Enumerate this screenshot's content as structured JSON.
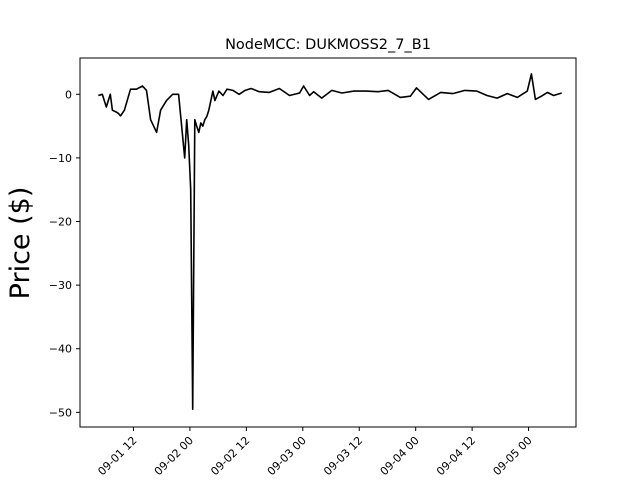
{
  "chart_data": {
    "type": "line",
    "title": "NodeMCC: DUKMOSS2_7_B1",
    "xlabel": "",
    "ylabel": "Price ($)",
    "ylim": [
      -52.3,
      5.7
    ],
    "xlim": [
      "2020-09-01 00:38",
      "2020-09-05 10:05"
    ],
    "grid": false,
    "yticks": [
      0,
      -10,
      -20,
      -30,
      -40,
      -50
    ],
    "ytick_labels": [
      "0",
      "−10",
      "−20",
      "−30",
      "−40",
      "−50"
    ],
    "xticks": [
      "2020-09-01 12:00",
      "2020-09-02 00:00",
      "2020-09-02 12:00",
      "2020-09-03 00:00",
      "2020-09-03 12:00",
      "2020-09-04 00:00",
      "2020-09-04 12:00",
      "2020-09-05 00:00"
    ],
    "xtick_labels": [
      "09-01 12",
      "09-02 00",
      "09-02 12",
      "09-03 00",
      "09-03 12",
      "09-04 00",
      "09-04 12",
      "09-05 00"
    ],
    "series": [
      {
        "color": "#000000",
        "x": [
          "2020-09-01 04:31",
          "2020-09-01 05:22",
          "2020-09-01 06:14",
          "2020-09-01 07:05",
          "2020-09-01 07:31",
          "2020-09-01 08:22",
          "2020-09-01 08:48",
          "2020-09-01 09:14",
          "2020-09-01 10:05",
          "2020-09-01 11:22",
          "2020-09-01 12:38",
          "2020-09-01 13:55",
          "2020-09-01 14:46",
          "2020-09-01 15:38",
          "2020-09-01 16:55",
          "2020-09-01 17:46",
          "2020-09-01 19:02",
          "2020-09-01 20:19",
          "2020-09-01 21:36",
          "2020-09-01 22:53",
          "2020-09-01 23:19",
          "2020-09-01 23:44",
          "2020-09-02 00:10",
          "2020-09-02 00:36",
          "2020-09-02 01:02",
          "2020-09-02 01:27",
          "2020-09-02 01:53",
          "2020-09-02 02:19",
          "2020-09-02 02:44",
          "2020-09-02 03:10",
          "2020-09-02 03:36",
          "2020-09-02 04:01",
          "2020-09-02 04:53",
          "2020-09-02 05:19",
          "2020-09-02 06:10",
          "2020-09-02 07:02",
          "2020-09-02 07:53",
          "2020-09-02 09:10",
          "2020-09-02 10:27",
          "2020-09-02 11:44",
          "2020-09-02 13:01",
          "2020-09-02 14:44",
          "2020-09-02 16:53",
          "2020-09-02 19:02",
          "2020-09-02 21:10",
          "2020-09-02 23:19",
          "2020-09-03 00:10",
          "2020-09-03 01:27",
          "2020-09-03 02:19",
          "2020-09-03 04:01",
          "2020-09-03 06:10",
          "2020-09-03 08:19",
          "2020-09-03 10:53",
          "2020-09-03 13:27",
          "2020-09-03 16:01",
          "2020-09-03 18:10",
          "2020-09-03 20:44",
          "2020-09-03 22:53",
          "2020-09-04 00:10",
          "2020-09-04 01:02",
          "2020-09-04 02:44",
          "2020-09-04 05:19",
          "2020-09-04 07:53",
          "2020-09-04 10:27",
          "2020-09-04 13:01",
          "2020-09-04 15:10",
          "2020-09-04 17:19",
          "2020-09-04 19:27",
          "2020-09-04 21:36",
          "2020-09-04 23:44",
          "2020-09-05 00:36",
          "2020-09-05 01:27",
          "2020-09-05 02:44",
          "2020-09-05 04:01",
          "2020-09-05 05:19",
          "2020-09-05 07:02"
        ],
        "y": [
          -0.2,
          0.0,
          -2.0,
          0.0,
          -2.5,
          -2.8,
          -3.0,
          -3.4,
          -2.5,
          0.8,
          0.8,
          1.3,
          0.6,
          -4.0,
          -6.0,
          -2.5,
          -1.0,
          0.0,
          0.0,
          -10.0,
          -4.0,
          -8.0,
          -15.0,
          -49.5,
          -4.0,
          -5.0,
          -6.0,
          -4.5,
          -5.0,
          -4.0,
          -3.5,
          -2.5,
          0.5,
          -1.0,
          0.5,
          -0.2,
          0.8,
          0.6,
          0.0,
          0.6,
          0.9,
          0.4,
          0.3,
          0.9,
          -0.2,
          0.2,
          1.3,
          -0.2,
          0.4,
          -0.6,
          0.6,
          0.2,
          0.5,
          0.5,
          0.4,
          0.6,
          -0.5,
          -0.3,
          1.0,
          0.4,
          -0.8,
          0.3,
          0.1,
          0.6,
          0.5,
          -0.2,
          -0.6,
          0.1,
          -0.5,
          0.5,
          3.2,
          -0.8,
          -0.3,
          0.3,
          -0.2,
          0.2
        ]
      }
    ]
  }
}
